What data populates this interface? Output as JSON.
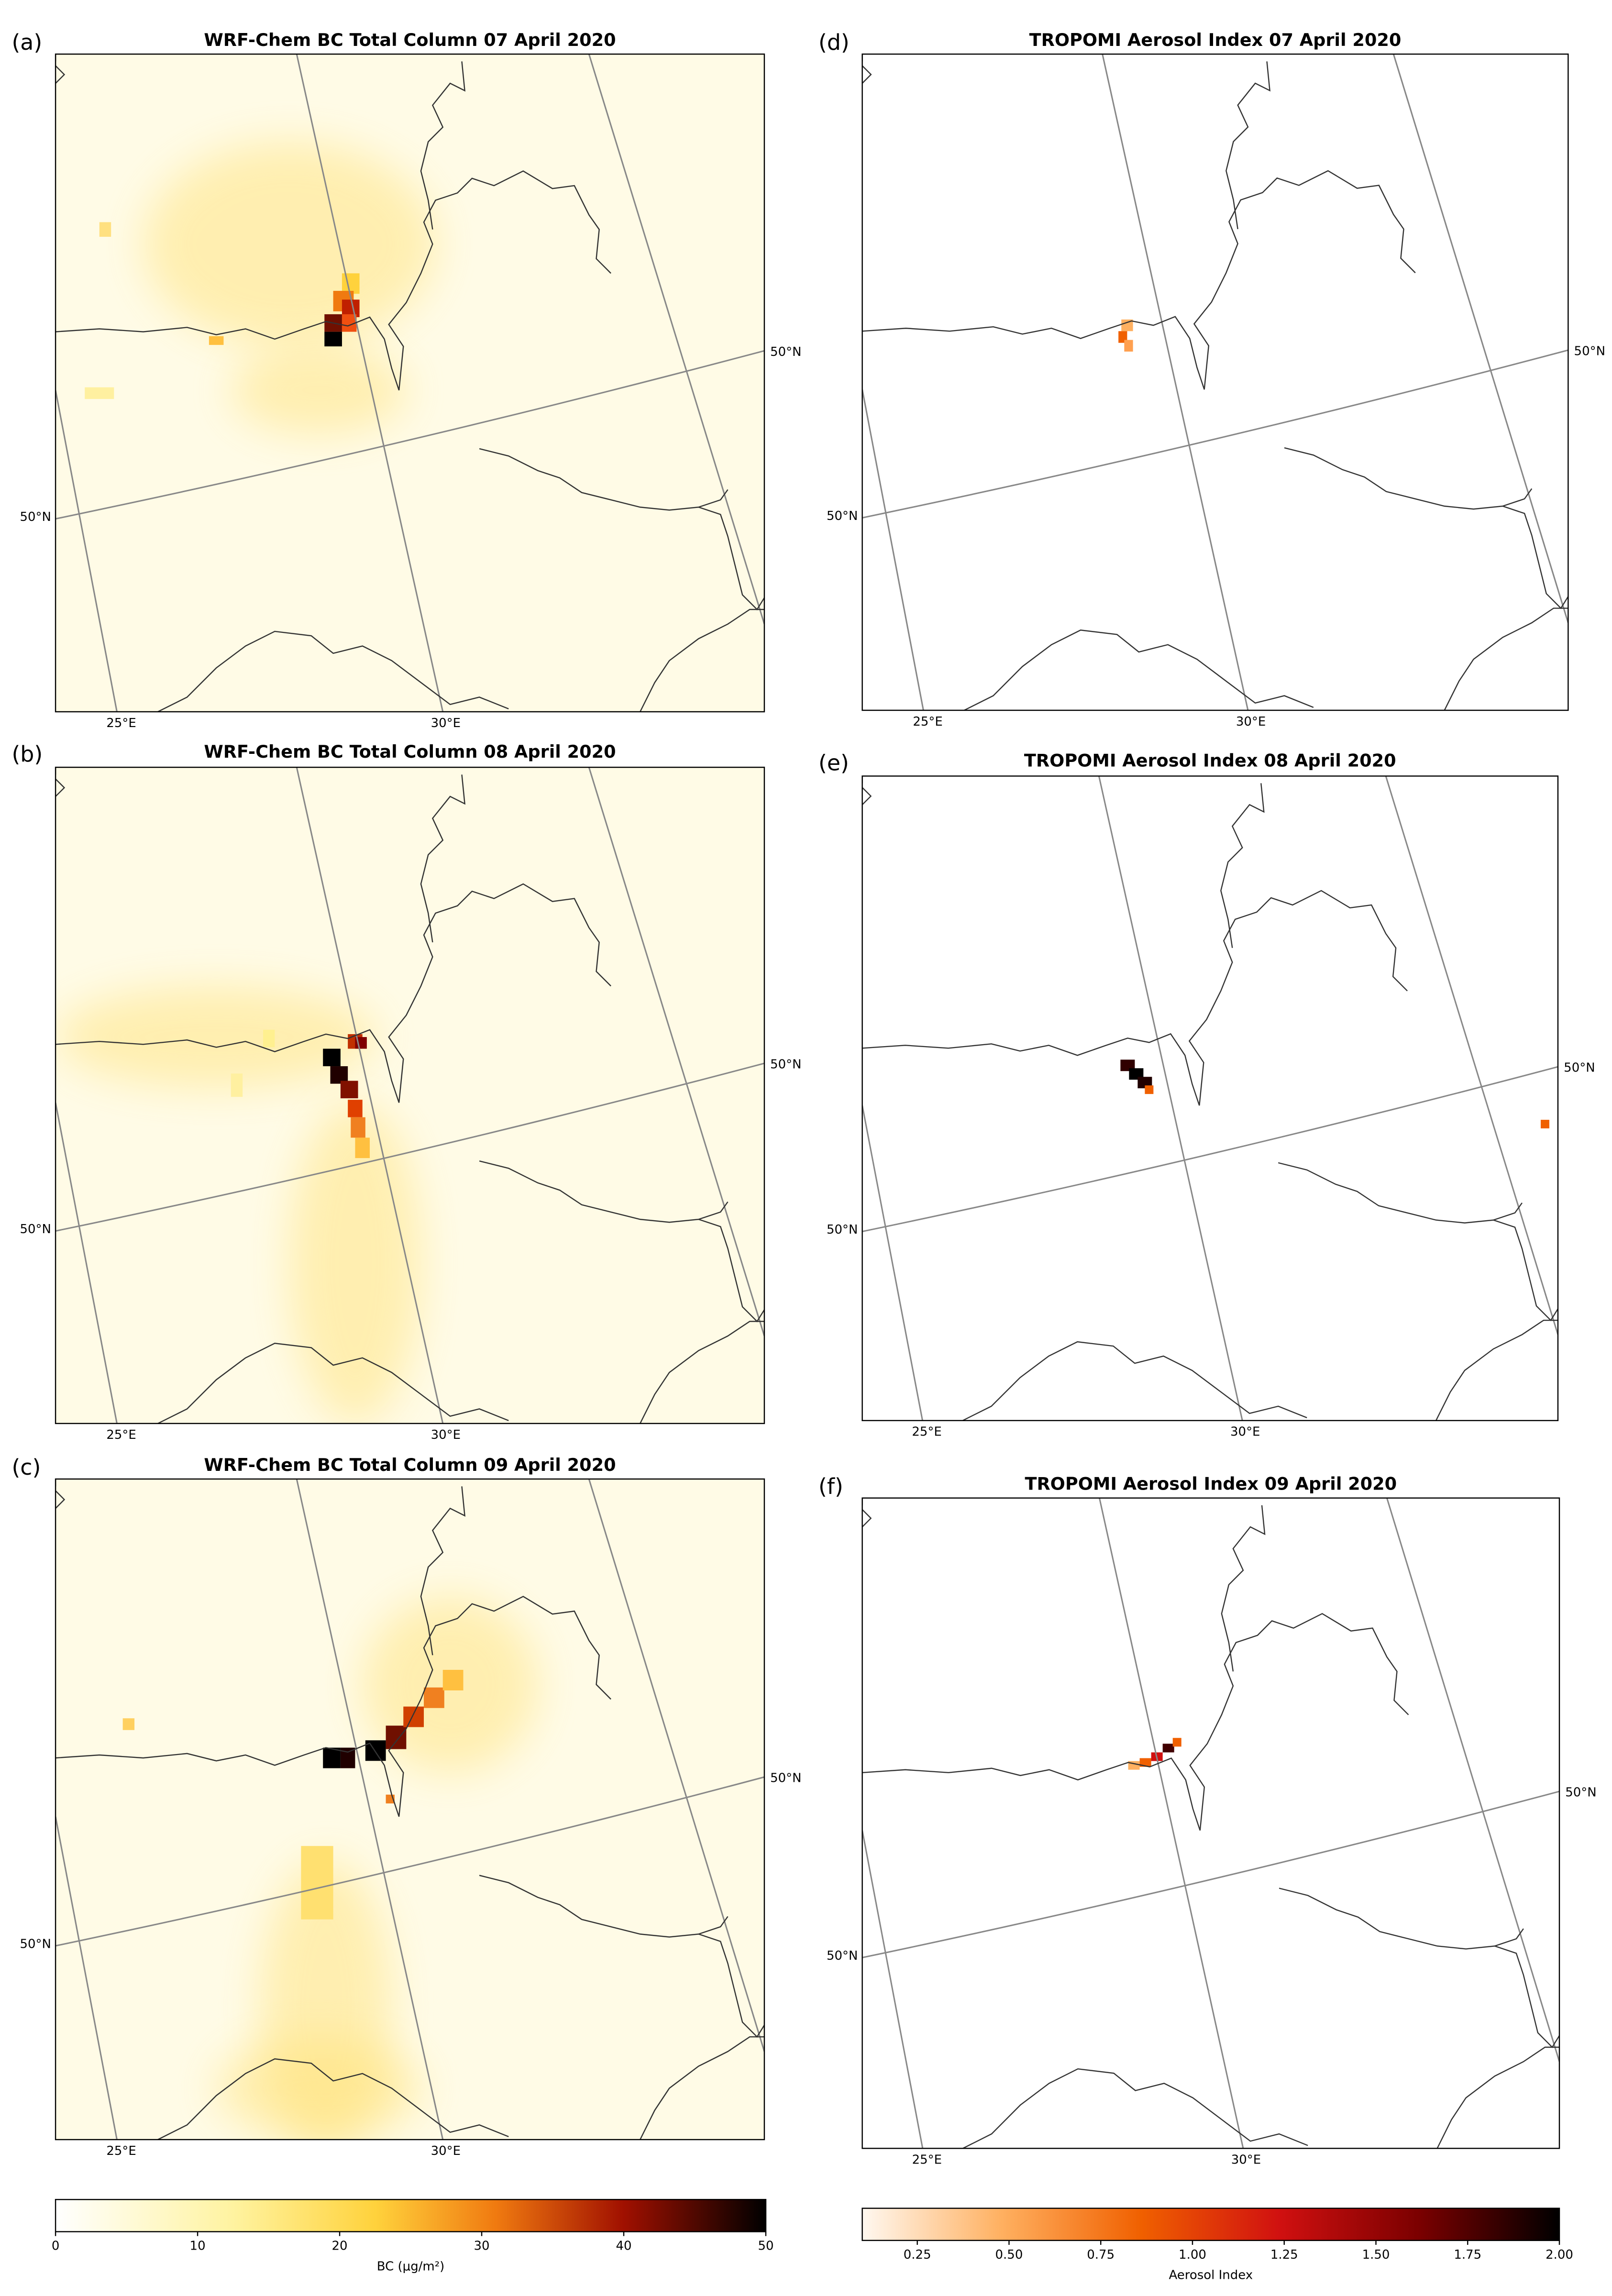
{
  "panels": [
    {
      "label": "(a)",
      "title": "WRF-Chem BC Total Column 07 April 2020",
      "meridian_labels": [
        "25°E",
        "30°E"
      ],
      "parallel_labels": [
        "50°N",
        "50°N"
      ]
    },
    {
      "label": "(b)",
      "title": "WRF-Chem BC Total Column 08 April 2020",
      "meridian_labels": [
        "25°E",
        "30°E"
      ],
      "parallel_labels": [
        "50°N",
        "50°N"
      ]
    },
    {
      "label": "(c)",
      "title": "WRF-Chem BC Total Column 09 April 2020",
      "meridian_labels": [
        "25°E",
        "30°E"
      ],
      "parallel_labels": [
        "50°N",
        "50°N"
      ]
    },
    {
      "label": "(d)",
      "title": "TROPOMI Aerosol Index 07 April 2020",
      "meridian_labels": [
        "25°E",
        "30°E"
      ],
      "parallel_labels": [
        "50°N",
        "50°N"
      ]
    },
    {
      "label": "(e)",
      "title": "TROPOMI Aerosol Index 08 April 2020",
      "meridian_labels": [
        "25°E",
        "30°E"
      ],
      "parallel_labels": [
        "50°N",
        "50°N"
      ]
    },
    {
      "label": "(f)",
      "title": "TROPOMI Aerosol Index 09 April 2020",
      "meridian_labels": [
        "25°E",
        "30°E"
      ],
      "parallel_labels": [
        "50°N",
        "50°N"
      ]
    }
  ],
  "colorbars": [
    {
      "label": "BC (μg/m²)",
      "lim": [
        0,
        50
      ],
      "ticks": [
        0,
        10,
        20,
        30,
        40,
        50
      ]
    },
    {
      "label": "Aerosol Index",
      "lim": [
        0.1,
        2.0
      ],
      "ticks": [
        0.25,
        {
          "value": 0.5,
          "label": "0.50"
        },
        0.75,
        {
          "value": 1.0,
          "label": "1.00"
        },
        1.25,
        {
          "value": 1.5,
          "label": "1.50"
        },
        1.75,
        {
          "value": 2.0,
          "label": "2.00"
        }
      ]
    }
  ]
}
